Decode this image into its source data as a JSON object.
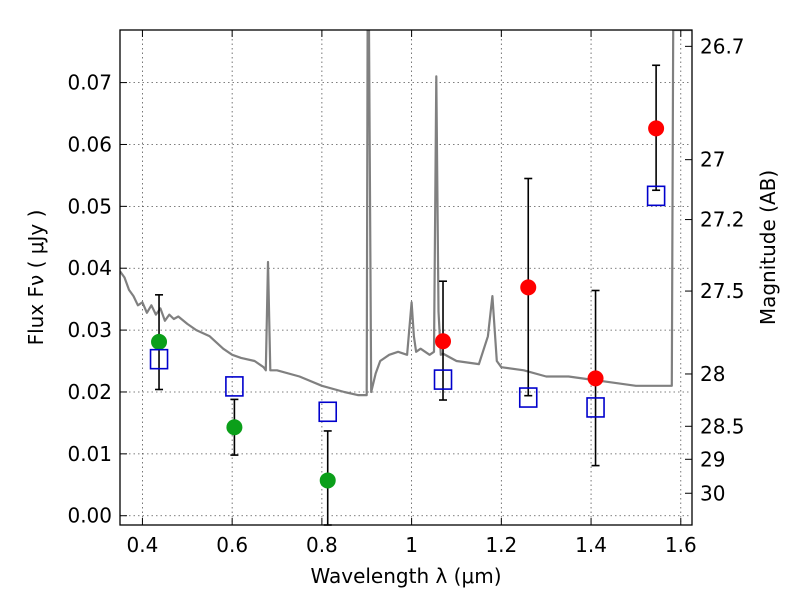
{
  "chart_data": {
    "type": "scatter",
    "title": "",
    "xlabel": "Wavelength  λ (μm)",
    "ylabel": "Flux  Fν  ( μJy )",
    "y2label": "Magnitude (AB)",
    "xlim": [
      0.35,
      1.625
    ],
    "ylim": [
      -0.0015,
      0.0785
    ],
    "grid": true,
    "x_ticks": [
      {
        "value": 0.4,
        "label": "0.4"
      },
      {
        "value": 0.6,
        "label": "0.6"
      },
      {
        "value": 0.8,
        "label": "0.8"
      },
      {
        "value": 1.0,
        "label": "1"
      },
      {
        "value": 1.2,
        "label": "1.2"
      },
      {
        "value": 1.4,
        "label": "1.4"
      },
      {
        "value": 1.6,
        "label": "1.6"
      }
    ],
    "y_ticks": [
      {
        "value": 0.0,
        "label": "0.00"
      },
      {
        "value": 0.01,
        "label": "0.01"
      },
      {
        "value": 0.02,
        "label": "0.02"
      },
      {
        "value": 0.03,
        "label": "0.03"
      },
      {
        "value": 0.04,
        "label": "0.04"
      },
      {
        "value": 0.05,
        "label": "0.05"
      },
      {
        "value": 0.06,
        "label": "0.06"
      },
      {
        "value": 0.07,
        "label": "0.07"
      }
    ],
    "y2_ticks": [
      {
        "value": 26.7,
        "label": "26.7"
      },
      {
        "value": 27.0,
        "label": "27"
      },
      {
        "value": 27.2,
        "label": "27.2"
      },
      {
        "value": 27.5,
        "label": "27.5"
      },
      {
        "value": 28.0,
        "label": "28"
      },
      {
        "value": 28.5,
        "label": "28.5"
      },
      {
        "value": 29.0,
        "label": "29"
      },
      {
        "value": 30.0,
        "label": "30"
      }
    ],
    "colors": {
      "model": "#808080",
      "observed_blue": "#0b9f1a",
      "observed_red": "#ff0000",
      "model_photometry": "#0000cc",
      "error_bar": "#000000",
      "grid": "#555555"
    },
    "series": [
      {
        "kind": "line",
        "x": [
          0.35,
          0.36,
          0.37,
          0.38,
          0.39,
          0.4,
          0.41,
          0.42,
          0.43,
          0.44,
          0.45,
          0.46,
          0.47,
          0.48,
          0.5,
          0.52,
          0.55,
          0.58,
          0.6,
          0.62,
          0.65,
          0.67,
          0.675,
          0.68,
          0.685,
          0.7,
          0.75,
          0.8,
          0.85,
          0.88,
          0.9,
          0.902,
          0.905,
          0.91,
          0.92,
          0.93,
          0.95,
          0.97,
          0.99,
          1.0,
          1.005,
          1.01,
          1.02,
          1.04,
          1.05,
          1.055,
          1.06,
          1.065,
          1.07,
          1.1,
          1.15,
          1.17,
          1.18,
          1.19,
          1.2,
          1.25,
          1.3,
          1.35,
          1.4,
          1.45,
          1.5,
          1.55,
          1.58,
          1.583,
          1.585,
          1.625
        ],
        "y": [
          0.0395,
          0.0385,
          0.0365,
          0.0355,
          0.034,
          0.0345,
          0.0328,
          0.034,
          0.0325,
          0.0335,
          0.0315,
          0.0325,
          0.0318,
          0.0322,
          0.031,
          0.03,
          0.029,
          0.027,
          0.026,
          0.0255,
          0.025,
          0.024,
          0.0235,
          0.041,
          0.0235,
          0.0235,
          0.0225,
          0.021,
          0.02,
          0.0195,
          0.0195,
          0.0785,
          0.0785,
          0.02,
          0.023,
          0.025,
          0.026,
          0.0265,
          0.026,
          0.0345,
          0.029,
          0.0265,
          0.027,
          0.026,
          0.0265,
          0.071,
          0.033,
          0.026,
          0.0262,
          0.025,
          0.0245,
          0.029,
          0.0355,
          0.025,
          0.024,
          0.0235,
          0.0225,
          0.0225,
          0.022,
          0.0215,
          0.021,
          0.021,
          0.021,
          0.0785,
          0.0785,
          0.0785
        ]
      },
      {
        "kind": "points",
        "style": "observed",
        "x": [
          0.437,
          0.605,
          0.813
        ],
        "y": [
          0.0281,
          0.0143,
          0.0057
        ],
        "err": [
          [
            0.0204,
            0.0357
          ],
          [
            0.0098,
            0.0188
          ],
          [
            -0.0015,
            0.0137
          ]
        ]
      },
      {
        "kind": "points",
        "style": "observed_alt",
        "x": [
          1.07,
          1.26,
          1.41,
          1.545
        ],
        "y": [
          0.0282,
          0.0369,
          0.0222,
          0.0626
        ],
        "err": [
          [
            0.0187,
            0.0379
          ],
          [
            0.0194,
            0.0545
          ],
          [
            0.0081,
            0.0364
          ],
          [
            0.0526,
            0.0728
          ]
        ]
      },
      {
        "kind": "squares",
        "style": "model_photometry",
        "x": [
          0.437,
          0.605,
          0.813,
          1.07,
          1.26,
          1.41,
          1.545
        ],
        "y": [
          0.0253,
          0.0209,
          0.0168,
          0.022,
          0.0191,
          0.0175,
          0.0517
        ]
      }
    ]
  }
}
